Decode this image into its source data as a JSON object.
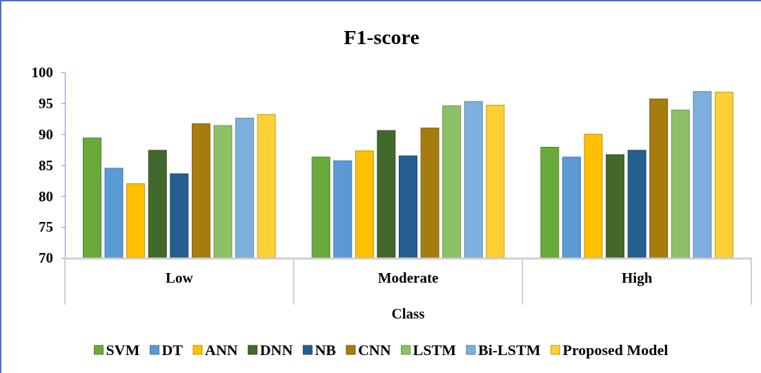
{
  "chart_data": {
    "type": "bar",
    "title": "F1-score",
    "xlabel": "Class",
    "categories": [
      "Low",
      "Moderate",
      "High"
    ],
    "series": [
      {
        "name": "SVM",
        "color": "#6aaa3a",
        "values": [
          89.4,
          86.3,
          87.9
        ]
      },
      {
        "name": "DT",
        "color": "#5b9bd5",
        "values": [
          84.5,
          85.7,
          86.3
        ]
      },
      {
        "name": "ANN",
        "color": "#ffc000",
        "values": [
          82,
          87.3,
          90
        ]
      },
      {
        "name": "DNN",
        "color": "#43682b",
        "values": [
          87.4,
          90.6,
          86.7
        ]
      },
      {
        "name": "NB",
        "color": "#255e91",
        "values": [
          83.6,
          86.5,
          87.4
        ]
      },
      {
        "name": "CNN",
        "color": "#a67c0e",
        "values": [
          91.7,
          91,
          95.7
        ]
      },
      {
        "name": "LSTM",
        "color": "#8cc168",
        "values": [
          91.4,
          94.6,
          93.9
        ]
      },
      {
        "name": "Bi-LSTM",
        "color": "#7cafdd",
        "values": [
          92.6,
          95.3,
          96.9
        ]
      },
      {
        "name": "Proposed Model",
        "color": "#ffd033",
        "values": [
          93.2,
          94.7,
          96.8
        ]
      }
    ],
    "ylim": [
      70,
      100
    ],
    "yticks": [
      70,
      75,
      80,
      85,
      90,
      95,
      100
    ],
    "legend": "bottom"
  }
}
